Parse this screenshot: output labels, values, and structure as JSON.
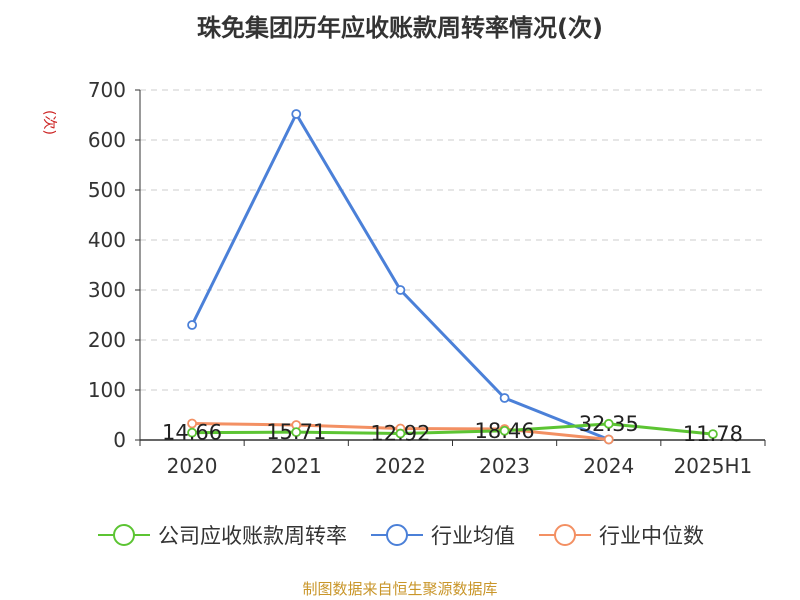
{
  "title": "珠免集团历年应收账款周转率情况(次)",
  "source": "制图数据来自恒生聚源数据库",
  "chart_data": {
    "type": "line",
    "title": "珠免集团历年应收账款周转率情况(次)",
    "ylabel": "(次)",
    "xlabel": "",
    "ylim": [
      0,
      700
    ],
    "yticks": [
      0,
      100,
      200,
      300,
      400,
      500,
      600,
      700
    ],
    "categories": [
      "2020",
      "2021",
      "2022",
      "2023",
      "2024",
      "2025H1"
    ],
    "grid": true,
    "legend_position": "bottom",
    "series": [
      {
        "name": "公司应收账款周转率",
        "color": "#5cc433",
        "values": [
          14.66,
          15.71,
          12.92,
          18.46,
          32.35,
          11.78
        ],
        "labels": [
          "14.66",
          "15.71",
          "12.92",
          "18.46",
          "32.35",
          "11.78"
        ]
      },
      {
        "name": "行业均值",
        "color": "#4b80d8",
        "values": [
          230,
          652,
          300,
          84,
          1,
          null
        ]
      },
      {
        "name": "行业中位数",
        "color": "#f39063",
        "values": [
          33,
          30,
          23,
          22,
          1,
          null
        ]
      }
    ]
  }
}
